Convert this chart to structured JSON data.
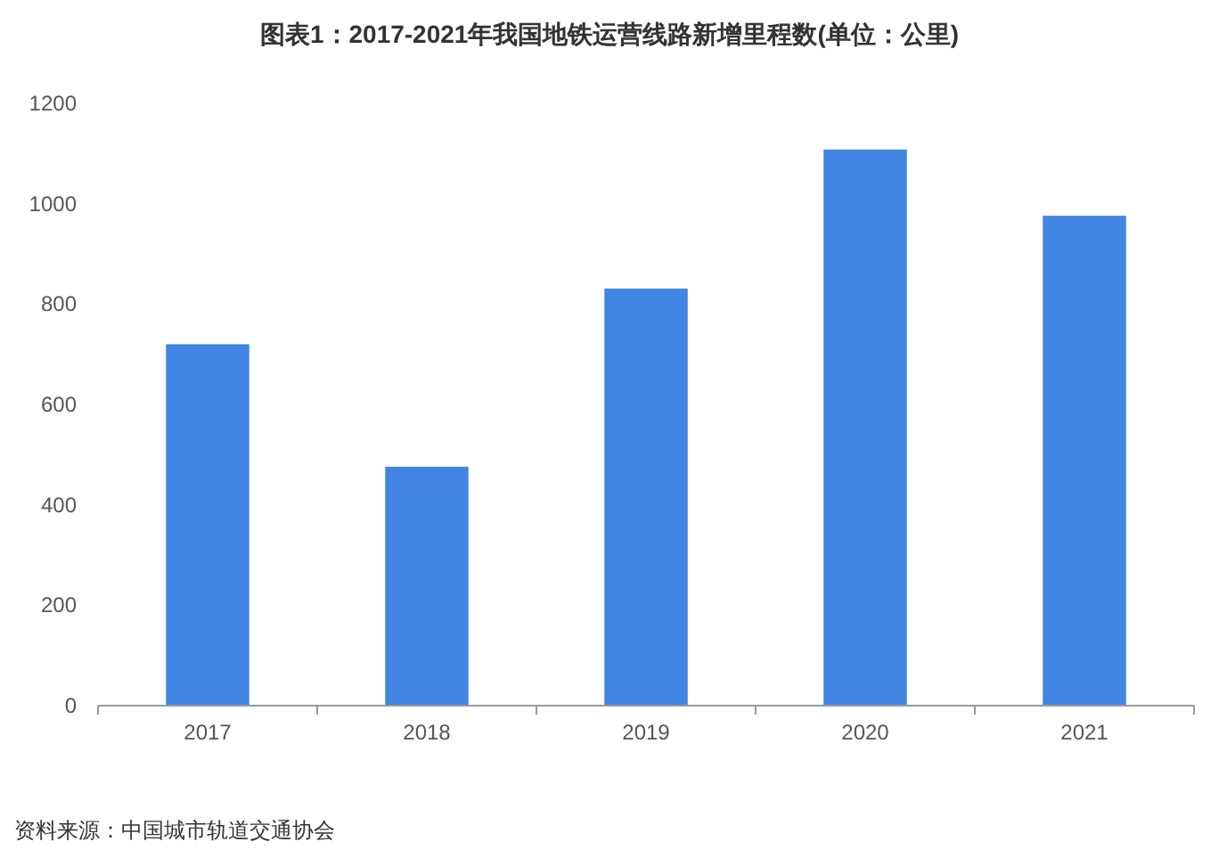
{
  "chart_data": {
    "type": "bar",
    "title": "图表1：2017-2021年我国地铁运营线路新增里程数(单位：公里)",
    "categories": [
      "2017",
      "2018",
      "2019",
      "2020",
      "2021"
    ],
    "values": [
      720,
      476,
      831,
      1108,
      976
    ],
    "color": "#4285e3",
    "ylim": [
      0,
      1200
    ],
    "yticks": [
      0,
      200,
      400,
      600,
      800,
      1000,
      1200
    ],
    "grid": false,
    "annotations": [
      "资料来源：中国城市轨道交通协会"
    ]
  }
}
